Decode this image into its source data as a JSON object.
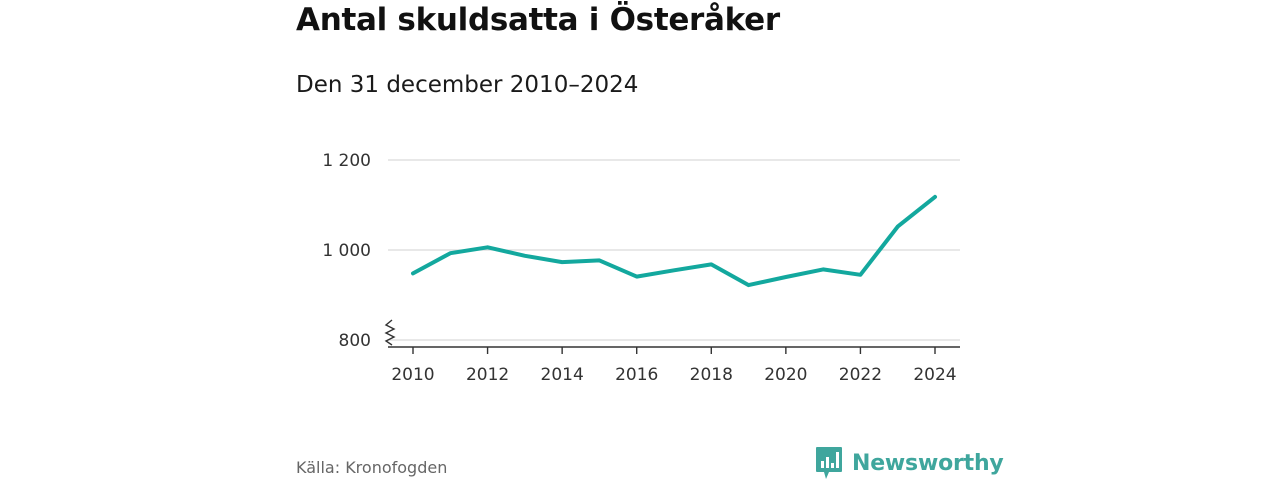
{
  "header": {
    "title": "Antal skuldsatta i Österåker",
    "subtitle": "Den 31 december 2010–2024"
  },
  "footer": {
    "source": "Källa: Kronofogden",
    "brand": "Newsworthy"
  },
  "colors": {
    "line": "#13a89e",
    "grid": "#d9d9d9",
    "axis": "#333333",
    "brand": "#3fa69d"
  },
  "chart_data": {
    "type": "line",
    "title": "Antal skuldsatta i Österåker",
    "subtitle": "Den 31 december 2010–2024",
    "xlabel": "",
    "ylabel": "",
    "x": [
      2010,
      2011,
      2012,
      2013,
      2014,
      2015,
      2016,
      2017,
      2018,
      2019,
      2020,
      2021,
      2022,
      2023,
      2024
    ],
    "series": [
      {
        "name": "Antal skuldsatta",
        "values": [
          948,
          993,
          1006,
          987,
          973,
          977,
          941,
          955,
          968,
          922,
          940,
          957,
          945,
          1052,
          1118
        ]
      }
    ],
    "ylim": [
      800,
      1200
    ],
    "xlim": [
      2010,
      2024
    ],
    "y_ticks": [
      800,
      1000,
      1200
    ],
    "y_tick_labels": [
      "800",
      "1 000",
      "1 200"
    ],
    "x_ticks": [
      2010,
      2012,
      2014,
      2016,
      2018,
      2020,
      2022,
      2024
    ],
    "x_tick_labels": [
      "2010",
      "2012",
      "2014",
      "2016",
      "2018",
      "2020",
      "2022",
      "2024"
    ],
    "grid": true,
    "legend": "none",
    "axis_break": true
  }
}
